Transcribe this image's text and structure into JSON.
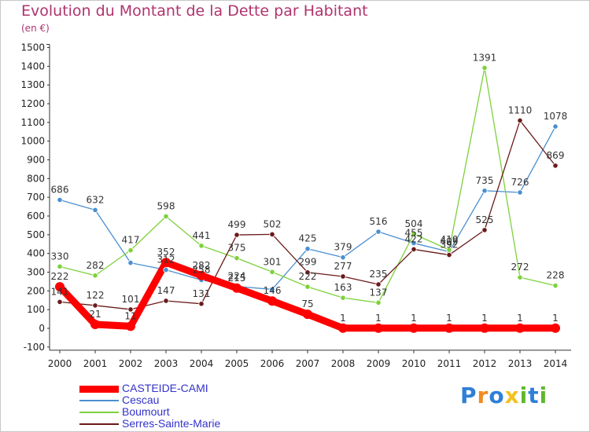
{
  "title": "Evolution du Montant de la Dette par Habitant",
  "subtitle": "(en €)",
  "logo": {
    "letters": [
      "P",
      "r",
      "o",
      "x",
      "i",
      "t",
      "i"
    ],
    "colors": [
      "#2f7fd8",
      "#f28b1e",
      "#2f7fd8",
      "#f2c21e",
      "#5fb82e",
      "#2f7fd8",
      "#5fb82e"
    ]
  },
  "chart_data": {
    "type": "line",
    "x": [
      "2000",
      "2001",
      "2002",
      "2003",
      "2004",
      "2005",
      "2006",
      "2007",
      "2008",
      "2009",
      "2010",
      "2011",
      "2012",
      "2013",
      "2014"
    ],
    "y_ticks": [
      -100,
      0,
      100,
      200,
      300,
      400,
      500,
      600,
      700,
      800,
      900,
      1000,
      1100,
      1200,
      1300,
      1400,
      1500
    ],
    "ylim": [
      -100,
      1500
    ],
    "grid": false,
    "legend_position": "bottom-left",
    "series": [
      {
        "name": "CASTEIDE-CAMI",
        "color": "#ff0000",
        "emphasis": true,
        "values": [
          222,
          21,
          11,
          352,
          282,
          215,
          146,
          75,
          1,
          1,
          1,
          1,
          1,
          1,
          1
        ],
        "labels": [
          "222",
          "21",
          "11",
          "352",
          "282",
          "215",
          "146",
          "75",
          "1",
          "1",
          "1",
          "1",
          "1",
          "1",
          "1"
        ]
      },
      {
        "name": "Cescau",
        "color": "#4a8fd0",
        "values": [
          686,
          632,
          350,
          312,
          258,
          224,
          208,
          425,
          379,
          516,
          455,
          409,
          735,
          726,
          1078
        ],
        "labels": [
          "686",
          "632",
          "",
          "312",
          "258",
          "224",
          "",
          "425",
          "379",
          "516",
          "455",
          "409",
          "735",
          "726",
          "1078"
        ]
      },
      {
        "name": "Boumourt",
        "color": "#7dd13a",
        "values": [
          330,
          282,
          417,
          598,
          441,
          375,
          301,
          222,
          163,
          137,
          504,
          419,
          1391,
          272,
          228
        ],
        "labels": [
          "330",
          "282",
          "417",
          "598",
          "441",
          "375",
          "301",
          "222",
          "163",
          "137",
          "504",
          "419",
          "1391",
          "272",
          "228"
        ]
      },
      {
        "name": "Serres-Sainte-Marie",
        "color": "#6b1a1a",
        "values": [
          141,
          122,
          101,
          147,
          131,
          499,
          502,
          299,
          277,
          235,
          422,
          392,
          525,
          1110,
          869
        ],
        "labels": [
          "141",
          "122",
          "101",
          "147",
          "131",
          "499",
          "502",
          "299",
          "277",
          "235",
          "422",
          "392",
          "525",
          "1110",
          "869"
        ]
      }
    ]
  }
}
